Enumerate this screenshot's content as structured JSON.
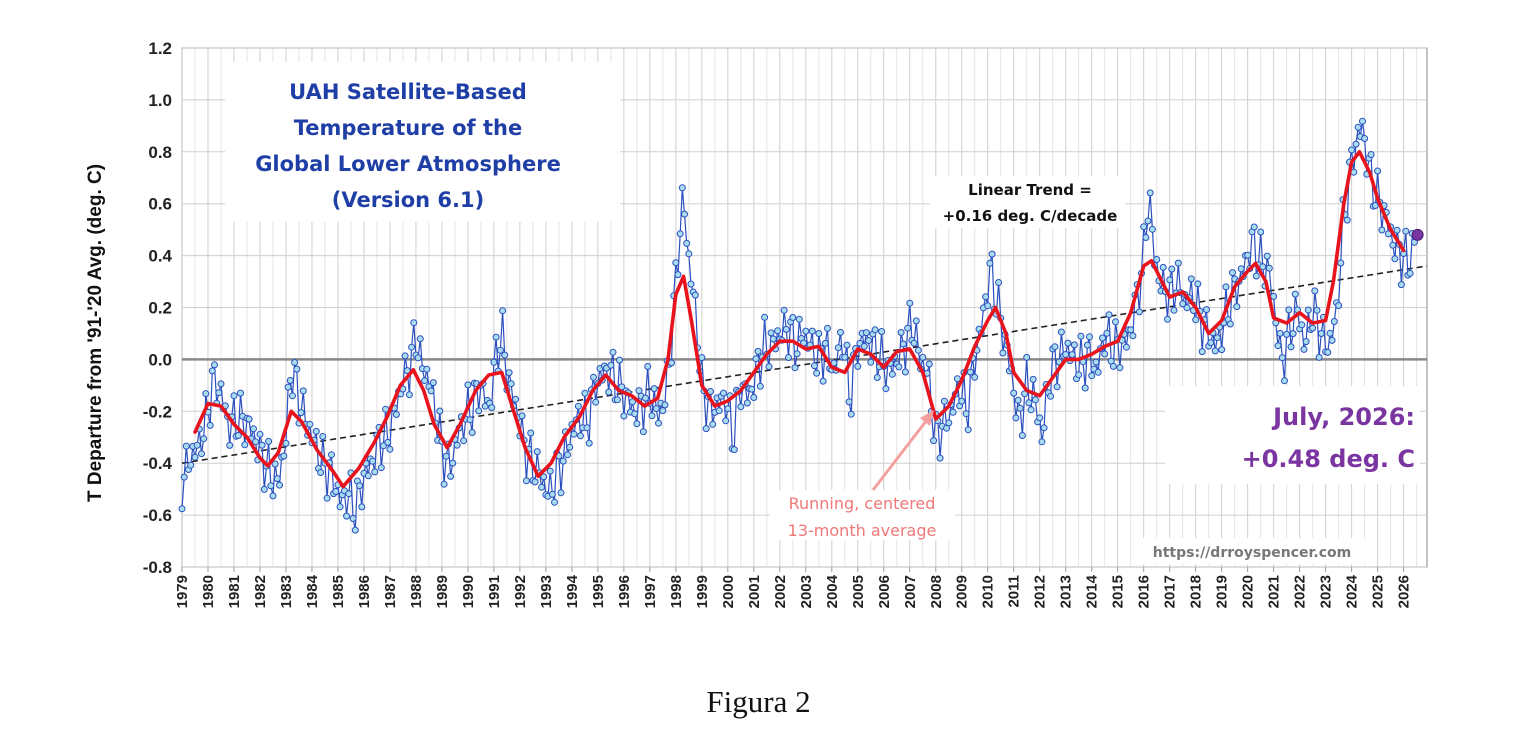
{
  "caption": "Figura 2",
  "chart_data": {
    "type": "line",
    "title_lines": [
      "UAH Satellite-Based",
      "Temperature of the",
      "Global Lower Atmosphere",
      "(Version 6.1)"
    ],
    "xlabel": "",
    "ylabel": "T Departure from '91-'20 Avg. (deg. C)",
    "ylim": [
      -0.8,
      1.2
    ],
    "y_ticks": [
      "1.2",
      "1.0",
      "0.8",
      "0.6",
      "0.4",
      "0.2",
      "0.0",
      "-0.2",
      "-0.4",
      "-0.6",
      "-0.8"
    ],
    "y_tick_values": [
      1.2,
      1.0,
      0.8,
      0.6,
      0.4,
      0.2,
      0.0,
      -0.2,
      -0.4,
      -0.6,
      -0.8
    ],
    "x_ticks": [
      "1979",
      "1980",
      "1981",
      "1982",
      "1983",
      "1984",
      "1985",
      "1986",
      "1987",
      "1988",
      "1989",
      "1990",
      "1991",
      "1992",
      "1993",
      "1994",
      "1995",
      "1996",
      "1997",
      "1998",
      "1999",
      "2000",
      "2001",
      "2002",
      "2003",
      "2004",
      "2005",
      "2006",
      "2007",
      "2008",
      "2009",
      "2010",
      "2011",
      "2012",
      "2013",
      "2014",
      "2015",
      "2016",
      "2017",
      "2018",
      "2019",
      "2020",
      "2021",
      "2022",
      "2023",
      "2024",
      "2025",
      "2026"
    ],
    "xlim": [
      1979,
      2026.9
    ],
    "grid": true,
    "colors": {
      "monthly": "#2a4fbf",
      "marker_fill": "#a8dcee",
      "running": "#e8141d",
      "trend": "#222222",
      "zero_line": "#888888",
      "latest_point": "#7a35a0",
      "annotation": "#f07878"
    },
    "trend": {
      "label_lines": [
        "Linear Trend =",
        "+0.16 deg. C/decade"
      ],
      "start": [
        1979.0,
        -0.4
      ],
      "end": [
        2026.9,
        0.36
      ]
    },
    "running_label_lines": [
      "Running, centered",
      "13-month average"
    ],
    "latest_label_lines": [
      "July, 2026:",
      "+0.48 deg. C"
    ],
    "latest_point": [
      2026.54,
      0.48
    ],
    "source": "https://drroyspencer.com",
    "series": [
      {
        "type": "monthly",
        "anchors": [
          [
            1979.0,
            -0.47
          ],
          [
            1979.3,
            -0.38
          ],
          [
            1979.6,
            -0.34
          ],
          [
            1979.9,
            -0.25
          ],
          [
            1980.2,
            -0.08
          ],
          [
            1980.5,
            -0.13
          ],
          [
            1980.8,
            -0.26
          ],
          [
            1981.1,
            -0.22
          ],
          [
            1981.5,
            -0.25
          ],
          [
            1981.8,
            -0.3
          ],
          [
            1982.1,
            -0.38
          ],
          [
            1982.4,
            -0.44
          ],
          [
            1982.7,
            -0.48
          ],
          [
            1983.0,
            -0.3
          ],
          [
            1983.2,
            -0.02
          ],
          [
            1983.5,
            -0.15
          ],
          [
            1983.8,
            -0.25
          ],
          [
            1984.1,
            -0.32
          ],
          [
            1984.4,
            -0.4
          ],
          [
            1984.8,
            -0.45
          ],
          [
            1985.1,
            -0.55
          ],
          [
            1985.4,
            -0.52
          ],
          [
            1985.7,
            -0.58
          ],
          [
            1986.0,
            -0.45
          ],
          [
            1986.3,
            -0.4
          ],
          [
            1986.6,
            -0.32
          ],
          [
            1986.9,
            -0.3
          ],
          [
            1987.2,
            -0.2
          ],
          [
            1987.5,
            -0.08
          ],
          [
            1987.8,
            -0.02
          ],
          [
            1988.0,
            0.1
          ],
          [
            1988.2,
            -0.02
          ],
          [
            1988.5,
            -0.08
          ],
          [
            1988.8,
            -0.22
          ],
          [
            1989.0,
            -0.35
          ],
          [
            1989.3,
            -0.42
          ],
          [
            1989.6,
            -0.3
          ],
          [
            1989.9,
            -0.22
          ],
          [
            1990.2,
            -0.18
          ],
          [
            1990.5,
            -0.1
          ],
          [
            1990.8,
            -0.2
          ],
          [
            1991.1,
            0.02
          ],
          [
            1991.3,
            0.1
          ],
          [
            1991.6,
            -0.1
          ],
          [
            1991.9,
            -0.2
          ],
          [
            1992.2,
            -0.35
          ],
          [
            1992.5,
            -0.4
          ],
          [
            1992.8,
            -0.45
          ],
          [
            1993.1,
            -0.52
          ],
          [
            1993.4,
            -0.45
          ],
          [
            1993.7,
            -0.38
          ],
          [
            1994.0,
            -0.28
          ],
          [
            1994.3,
            -0.22
          ],
          [
            1994.6,
            -0.25
          ],
          [
            1994.9,
            -0.1
          ],
          [
            1995.2,
            -0.05
          ],
          [
            1995.5,
            -0.05
          ],
          [
            1995.8,
            -0.1
          ],
          [
            1996.1,
            -0.15
          ],
          [
            1996.4,
            -0.2
          ],
          [
            1996.7,
            -0.18
          ],
          [
            1997.0,
            -0.12
          ],
          [
            1997.3,
            -0.22
          ],
          [
            1997.6,
            -0.15
          ],
          [
            1997.9,
            0.15
          ],
          [
            1998.1,
            0.45
          ],
          [
            1998.3,
            0.62
          ],
          [
            1998.5,
            0.38
          ],
          [
            1998.8,
            0.15
          ],
          [
            1999.0,
            -0.1
          ],
          [
            1999.3,
            -0.2
          ],
          [
            1999.6,
            -0.18
          ],
          [
            1999.9,
            -0.15
          ],
          [
            2000.2,
            -0.3
          ],
          [
            2000.5,
            -0.1
          ],
          [
            2000.8,
            -0.15
          ],
          [
            2001.1,
            -0.05
          ],
          [
            2001.4,
            0.05
          ],
          [
            2001.7,
            0.05
          ],
          [
            2002.0,
            0.1
          ],
          [
            2002.3,
            0.12
          ],
          [
            2002.6,
            0.05
          ],
          [
            2002.9,
            0.1
          ],
          [
            2003.2,
            0.05
          ],
          [
            2003.5,
            0.0
          ],
          [
            2003.8,
            0.05
          ],
          [
            2004.1,
            -0.05
          ],
          [
            2004.4,
            0.1
          ],
          [
            2004.7,
            -0.15
          ],
          [
            2005.0,
            0.05
          ],
          [
            2005.3,
            0.08
          ],
          [
            2005.6,
            0.05
          ],
          [
            2005.9,
            0.0
          ],
          [
            2006.2,
            -0.05
          ],
          [
            2006.5,
            0.0
          ],
          [
            2006.8,
            0.05
          ],
          [
            2007.1,
            0.15
          ],
          [
            2007.4,
            0.0
          ],
          [
            2007.7,
            -0.05
          ],
          [
            2008.0,
            -0.3
          ],
          [
            2008.3,
            -0.25
          ],
          [
            2008.6,
            -0.2
          ],
          [
            2008.9,
            -0.1
          ],
          [
            2009.2,
            -0.2
          ],
          [
            2009.5,
            0.0
          ],
          [
            2009.8,
            0.15
          ],
          [
            2010.1,
            0.35
          ],
          [
            2010.3,
            0.25
          ],
          [
            2010.6,
            0.1
          ],
          [
            2010.9,
            -0.05
          ],
          [
            2011.2,
            -0.25
          ],
          [
            2011.5,
            -0.1
          ],
          [
            2011.8,
            -0.15
          ],
          [
            2012.1,
            -0.3
          ],
          [
            2012.4,
            -0.05
          ],
          [
            2012.7,
            0.0
          ],
          [
            2013.0,
            0.05
          ],
          [
            2013.3,
            0.0
          ],
          [
            2013.6,
            -0.02
          ],
          [
            2013.9,
            0.02
          ],
          [
            2014.2,
            -0.05
          ],
          [
            2014.5,
            0.1
          ],
          [
            2014.8,
            0.05
          ],
          [
            2015.1,
            0.05
          ],
          [
            2015.4,
            0.08
          ],
          [
            2015.7,
            0.2
          ],
          [
            2016.0,
            0.4
          ],
          [
            2016.2,
            0.65
          ],
          [
            2016.4,
            0.4
          ],
          [
            2016.7,
            0.28
          ],
          [
            2017.0,
            0.25
          ],
          [
            2017.3,
            0.3
          ],
          [
            2017.6,
            0.22
          ],
          [
            2017.9,
            0.25
          ],
          [
            2018.2,
            0.15
          ],
          [
            2018.5,
            0.1
          ],
          [
            2018.8,
            0.05
          ],
          [
            2019.1,
            0.15
          ],
          [
            2019.4,
            0.25
          ],
          [
            2019.7,
            0.3
          ],
          [
            2020.0,
            0.4
          ],
          [
            2020.2,
            0.45
          ],
          [
            2020.5,
            0.38
          ],
          [
            2020.8,
            0.35
          ],
          [
            2021.1,
            0.15
          ],
          [
            2021.3,
            -0.02
          ],
          [
            2021.6,
            0.1
          ],
          [
            2021.9,
            0.2
          ],
          [
            2022.2,
            0.05
          ],
          [
            2022.5,
            0.2
          ],
          [
            2022.8,
            0.1
          ],
          [
            2023.1,
            0.05
          ],
          [
            2023.4,
            0.15
          ],
          [
            2023.7,
            0.55
          ],
          [
            2024.0,
            0.75
          ],
          [
            2024.2,
            0.85
          ],
          [
            2024.4,
            0.9
          ],
          [
            2024.7,
            0.72
          ],
          [
            2025.0,
            0.62
          ],
          [
            2025.3,
            0.55
          ],
          [
            2025.6,
            0.45
          ],
          [
            2025.9,
            0.4
          ],
          [
            2026.2,
            0.38
          ],
          [
            2026.54,
            0.48
          ]
        ]
      },
      {
        "type": "running_mean",
        "points": [
          [
            1979.5,
            -0.28
          ],
          [
            1980.0,
            -0.17
          ],
          [
            1980.5,
            -0.18
          ],
          [
            1981.0,
            -0.25
          ],
          [
            1981.5,
            -0.3
          ],
          [
            1982.0,
            -0.38
          ],
          [
            1982.3,
            -0.41
          ],
          [
            1982.7,
            -0.36
          ],
          [
            1983.2,
            -0.2
          ],
          [
            1983.6,
            -0.24
          ],
          [
            1984.2,
            -0.35
          ],
          [
            1984.8,
            -0.43
          ],
          [
            1985.2,
            -0.49
          ],
          [
            1985.8,
            -0.42
          ],
          [
            1986.4,
            -0.32
          ],
          [
            1986.9,
            -0.22
          ],
          [
            1987.4,
            -0.1
          ],
          [
            1987.9,
            -0.04
          ],
          [
            1988.3,
            -0.12
          ],
          [
            1988.7,
            -0.25
          ],
          [
            1989.2,
            -0.34
          ],
          [
            1989.7,
            -0.25
          ],
          [
            1990.3,
            -0.12
          ],
          [
            1990.8,
            -0.06
          ],
          [
            1991.3,
            -0.05
          ],
          [
            1991.7,
            -0.18
          ],
          [
            1992.2,
            -0.34
          ],
          [
            1992.7,
            -0.45
          ],
          [
            1993.2,
            -0.4
          ],
          [
            1993.7,
            -0.3
          ],
          [
            1994.3,
            -0.22
          ],
          [
            1994.8,
            -0.12
          ],
          [
            1995.3,
            -0.06
          ],
          [
            1995.8,
            -0.12
          ],
          [
            1996.3,
            -0.14
          ],
          [
            1996.8,
            -0.18
          ],
          [
            1997.3,
            -0.15
          ],
          [
            1997.7,
            0.0
          ],
          [
            1998.0,
            0.25
          ],
          [
            1998.3,
            0.32
          ],
          [
            1998.6,
            0.15
          ],
          [
            1999.0,
            -0.1
          ],
          [
            1999.5,
            -0.18
          ],
          [
            2000.0,
            -0.16
          ],
          [
            2000.5,
            -0.12
          ],
          [
            2001.0,
            -0.05
          ],
          [
            2001.5,
            0.02
          ],
          [
            2002.0,
            0.07
          ],
          [
            2002.5,
            0.07
          ],
          [
            2003.0,
            0.04
          ],
          [
            2003.5,
            0.05
          ],
          [
            2004.0,
            -0.03
          ],
          [
            2004.5,
            -0.05
          ],
          [
            2005.0,
            0.04
          ],
          [
            2005.5,
            0.02
          ],
          [
            2006.0,
            -0.03
          ],
          [
            2006.5,
            0.03
          ],
          [
            2007.0,
            0.04
          ],
          [
            2007.5,
            -0.05
          ],
          [
            2008.0,
            -0.23
          ],
          [
            2008.5,
            -0.18
          ],
          [
            2009.0,
            -0.08
          ],
          [
            2009.5,
            0.05
          ],
          [
            2010.0,
            0.15
          ],
          [
            2010.3,
            0.2
          ],
          [
            2010.7,
            0.1
          ],
          [
            2011.0,
            -0.05
          ],
          [
            2011.5,
            -0.12
          ],
          [
            2012.0,
            -0.14
          ],
          [
            2012.5,
            -0.07
          ],
          [
            2013.0,
            0.0
          ],
          [
            2013.5,
            0.0
          ],
          [
            2014.0,
            0.02
          ],
          [
            2014.5,
            0.05
          ],
          [
            2015.0,
            0.07
          ],
          [
            2015.5,
            0.18
          ],
          [
            2016.0,
            0.36
          ],
          [
            2016.3,
            0.38
          ],
          [
            2016.7,
            0.3
          ],
          [
            2017.0,
            0.24
          ],
          [
            2017.5,
            0.26
          ],
          [
            2018.0,
            0.2
          ],
          [
            2018.5,
            0.1
          ],
          [
            2019.0,
            0.15
          ],
          [
            2019.5,
            0.28
          ],
          [
            2020.0,
            0.34
          ],
          [
            2020.3,
            0.37
          ],
          [
            2020.7,
            0.3
          ],
          [
            2021.0,
            0.16
          ],
          [
            2021.5,
            0.14
          ],
          [
            2022.0,
            0.18
          ],
          [
            2022.5,
            0.14
          ],
          [
            2023.0,
            0.15
          ],
          [
            2023.3,
            0.3
          ],
          [
            2023.7,
            0.6
          ],
          [
            2024.0,
            0.76
          ],
          [
            2024.3,
            0.8
          ],
          [
            2024.7,
            0.72
          ],
          [
            2025.0,
            0.62
          ],
          [
            2025.5,
            0.5
          ],
          [
            2026.0,
            0.42
          ]
        ]
      }
    ]
  }
}
